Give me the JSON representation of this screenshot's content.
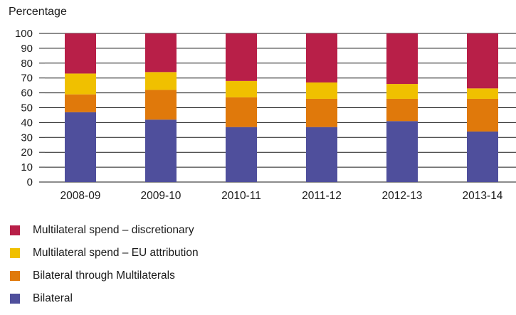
{
  "chart_data": {
    "type": "bar",
    "stacked": true,
    "ylabel": "Percentage",
    "xlabel": "",
    "ylim": [
      0,
      100
    ],
    "yticks": [
      0,
      10,
      20,
      30,
      40,
      50,
      60,
      70,
      80,
      90,
      100
    ],
    "grid": "horizontal",
    "legend_position": "bottom",
    "categories": [
      "2008-09",
      "2009-10",
      "2010-11",
      "2011-12",
      "2012-13",
      "2013-14"
    ],
    "series": [
      {
        "name": "Bilateral",
        "color": "#4f4f9c",
        "values": [
          47,
          42,
          37,
          37,
          41,
          34
        ]
      },
      {
        "name": "Bilateral through Multilaterals",
        "color": "#e0790b",
        "values": [
          12,
          20,
          20,
          19,
          15,
          22
        ]
      },
      {
        "name": "Multilateral spend – EU attribution",
        "color": "#f0c000",
        "values": [
          14,
          12,
          11,
          11,
          10,
          7
        ]
      },
      {
        "name": "Multilateral spend – discretionary",
        "color": "#b81f48",
        "values": [
          27,
          26,
          32,
          33,
          34,
          37
        ]
      }
    ],
    "legend_order": [
      3,
      2,
      1,
      0
    ]
  }
}
